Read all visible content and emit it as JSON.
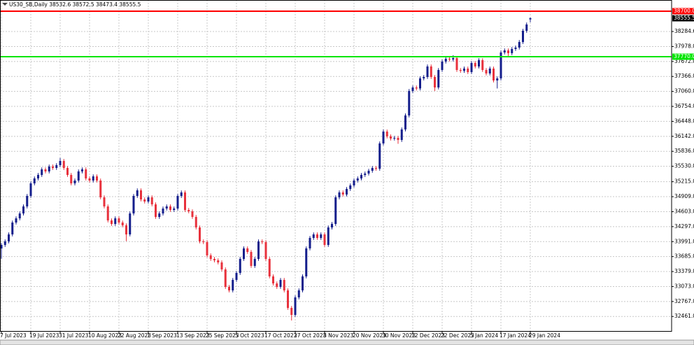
{
  "chart_data": {
    "type": "candlestick",
    "title": "US30_SB,Daily 38532.6 38572.5 38473.4 38555.5",
    "up_color": "#141e8c",
    "down_color": "#e8313c",
    "grid": true,
    "ylim": [
      32178.5,
      38813.7
    ],
    "yticks": [
      38284.6,
      {
        "value": 37978,
        "label": "37978.0"
      },
      {
        "value": 37672,
        "label": "37672.0"
      },
      {
        "value": 37366,
        "label": "37366.0"
      },
      {
        "value": 37060,
        "label": "37060.0"
      },
      {
        "value": 36754,
        "label": "36754.0"
      },
      {
        "value": 36448,
        "label": "36448.0"
      },
      {
        "value": 36142,
        "label": "36142.0"
      },
      {
        "value": 35836,
        "label": "35836.0"
      },
      {
        "value": 35530,
        "label": "35530.0"
      },
      {
        "value": 35215,
        "label": "35215.0"
      },
      {
        "value": 34909,
        "label": "34909.0"
      },
      {
        "value": 34603,
        "label": "34603.0"
      },
      {
        "value": 34297,
        "label": "34297.0"
      },
      {
        "value": 33991,
        "label": "33991.0"
      },
      {
        "value": 33685,
        "label": "33685.0"
      },
      {
        "value": 33379,
        "label": "33379.0"
      },
      {
        "value": 33073,
        "label": "33073.0"
      },
      {
        "value": 32767,
        "label": "32767.0"
      },
      {
        "value": 32461,
        "label": "32461.0"
      }
    ],
    "hlines": [
      {
        "value": 38700,
        "label": "38700.0",
        "color": "#ff0000"
      },
      {
        "value": 37770,
        "label": "37770.0",
        "color": "#00e600"
      }
    ],
    "last_price": 38555.5,
    "categories": [
      "7 Jul 2023",
      null,
      null,
      null,
      null,
      null,
      null,
      null,
      "19 Jul 2023",
      null,
      null,
      null,
      null,
      null,
      null,
      null,
      "31 Jul 2023",
      null,
      null,
      null,
      null,
      null,
      null,
      null,
      "10 Aug 2023",
      null,
      null,
      null,
      null,
      null,
      null,
      null,
      "22 Aug 2023",
      null,
      null,
      null,
      null,
      null,
      null,
      null,
      "1 Sep 2023",
      null,
      null,
      null,
      null,
      null,
      null,
      null,
      "13 Sep 2023",
      null,
      null,
      null,
      null,
      null,
      null,
      null,
      "25 Sep 2023",
      null,
      null,
      null,
      null,
      null,
      null,
      null,
      "5 Oct 2023",
      null,
      null,
      null,
      null,
      null,
      null,
      null,
      "17 Oct 2023",
      null,
      null,
      null,
      null,
      null,
      null,
      null,
      "27 Oct 2023",
      null,
      null,
      null,
      null,
      null,
      null,
      null,
      "8 Nov 2023",
      null,
      null,
      null,
      null,
      null,
      null,
      null,
      "20 Nov 2023",
      null,
      null,
      null,
      null,
      null,
      null,
      null,
      "30 Nov 2023",
      null,
      null,
      null,
      null,
      null,
      null,
      null,
      "12 Dec 2023",
      null,
      null,
      null,
      null,
      null,
      null,
      null,
      "22 Dec 2023",
      null,
      null,
      null,
      null,
      null,
      null,
      null,
      "5 Jan 2024",
      null,
      null,
      null,
      null,
      null,
      null,
      null,
      "17 Jan 2024",
      null,
      null,
      null,
      null,
      null,
      null,
      null,
      "29 Jan 2024"
    ],
    "open": [
      33850,
      33923,
      33995,
      34138,
      34381,
      34466,
      34566,
      34710,
      34924,
      35181,
      35282,
      35353,
      35467,
      35425,
      35525,
      35496,
      35553,
      35639,
      35496,
      35353,
      35181,
      35239,
      35425,
      35467,
      35282,
      35239,
      35324,
      35239,
      34895,
      34710,
      34424,
      34352,
      34466,
      34381,
      34323,
      34138,
      34566,
      34924,
      35038,
      34853,
      34810,
      34895,
      34752,
      34495,
      34566,
      34667,
      34710,
      34638,
      34667,
      34924,
      34996,
      34638,
      34609,
      34495,
      34280,
      33995,
      33980,
      33709,
      33637,
      33608,
      33566,
      33423,
      33065,
      32994,
      33208,
      33351,
      33637,
      33852,
      33780,
      33494,
      33637,
      33995,
      33980,
      33637,
      33280,
      33136,
      33065,
      33208,
      32994,
      32636,
      32493,
      32851,
      32994,
      33280,
      33852,
      34066,
      34138,
      34066,
      34138,
      33923,
      34280,
      34352,
      34895,
      34996,
      34953,
      35067,
      35139,
      35239,
      35282,
      35353,
      35382,
      35439,
      35496,
      35480,
      35997,
      36240,
      36140,
      36097,
      36111,
      36068,
      36283,
      36569,
      37069,
      37141,
      37120,
      37326,
      37355,
      37570,
      37355,
      37141,
      37498,
      37670,
      37727,
      37713,
      37741,
      37498,
      37480,
      37527,
      37455,
      37641,
      37570,
      37698,
      37498,
      37427,
      37527,
      37284,
      37326,
      37856,
      37898,
      37841,
      37927,
      37956,
      38070,
      38299,
      38532.6
    ],
    "high": [
      33963,
      34035,
      34178,
      34421,
      34506,
      34606,
      34750,
      34964,
      35221,
      35322,
      35393,
      35507,
      35507,
      35565,
      35565,
      35593,
      35700,
      35679,
      35536,
      35393,
      35279,
      35465,
      35507,
      35507,
      35322,
      35364,
      35364,
      35279,
      34935,
      34750,
      34464,
      34506,
      34506,
      34421,
      34363,
      34606,
      34964,
      35078,
      35078,
      34893,
      34935,
      34935,
      34792,
      34606,
      34707,
      34750,
      34750,
      34707,
      34964,
      35036,
      35036,
      34678,
      34649,
      34535,
      34320,
      34035,
      34020,
      33749,
      33677,
      33648,
      33606,
      33463,
      33105,
      33248,
      33391,
      33677,
      33892,
      33892,
      33820,
      33677,
      34035,
      34035,
      34020,
      33677,
      33320,
      33176,
      33248,
      33248,
      33034,
      32676,
      32891,
      33034,
      33320,
      33892,
      34106,
      34178,
      34178,
      34178,
      34178,
      34320,
      34392,
      34935,
      35036,
      35036,
      35107,
      35179,
      35279,
      35322,
      35393,
      35422,
      35479,
      35536,
      35536,
      36037,
      36280,
      36280,
      36180,
      36151,
      36151,
      36323,
      36609,
      37109,
      37181,
      37181,
      37366,
      37395,
      37610,
      37610,
      37395,
      37538,
      37710,
      37767,
      37767,
      37800,
      37781,
      37538,
      37567,
      37567,
      37681,
      37681,
      37738,
      37738,
      37538,
      37567,
      37567,
      37366,
      37896,
      37938,
      37938,
      37967,
      37996,
      38110,
      38339,
      38468,
      38572.5
    ],
    "low": [
      33640,
      33883,
      33955,
      34098,
      34341,
      34426,
      34526,
      34670,
      34884,
      35141,
      35242,
      35313,
      35385,
      35385,
      35456,
      35456,
      35513,
      35456,
      35313,
      35141,
      35141,
      35199,
      35385,
      35242,
      35199,
      35199,
      35199,
      34855,
      34670,
      34384,
      34312,
      34312,
      34341,
      34283,
      34000,
      34098,
      34526,
      34884,
      34813,
      34770,
      34770,
      34712,
      34455,
      34455,
      34526,
      34627,
      34598,
      34598,
      34627,
      34884,
      34598,
      34569,
      34455,
      34240,
      33955,
      33940,
      33669,
      33597,
      33568,
      33526,
      33383,
      33025,
      32954,
      32954,
      33168,
      33311,
      33597,
      33740,
      33454,
      33454,
      33597,
      33940,
      33597,
      33240,
      33096,
      33025,
      33025,
      32954,
      32596,
      32379,
      32453,
      32811,
      32954,
      33240,
      33812,
      34026,
      34026,
      34026,
      33883,
      33883,
      34240,
      34312,
      34855,
      34913,
      34913,
      35027,
      35099,
      35199,
      35242,
      35313,
      35342,
      35399,
      35440,
      35440,
      35957,
      36100,
      36057,
      36057,
      35990,
      36028,
      36243,
      36529,
      37029,
      37080,
      37080,
      37286,
      37315,
      37315,
      37069,
      37101,
      37458,
      37630,
      37673,
      37673,
      37458,
      37440,
      37440,
      37415,
      37415,
      37530,
      37530,
      37458,
      37387,
      37387,
      37244,
      37120,
      37286,
      37816,
      37760,
      37801,
      37887,
      37916,
      38030,
      38259,
      38473.4
    ],
    "close": [
      33923,
      33995,
      34138,
      34381,
      34466,
      34566,
      34710,
      34924,
      35181,
      35282,
      35353,
      35467,
      35425,
      35525,
      35496,
      35553,
      35639,
      35496,
      35353,
      35181,
      35239,
      35425,
      35467,
      35282,
      35239,
      35324,
      35239,
      34895,
      34710,
      34424,
      34352,
      34466,
      34381,
      34323,
      34138,
      34566,
      34924,
      35038,
      34853,
      34810,
      34895,
      34752,
      34495,
      34566,
      34667,
      34710,
      34638,
      34667,
      34924,
      34996,
      34638,
      34609,
      34495,
      34280,
      33995,
      33980,
      33709,
      33637,
      33608,
      33566,
      33423,
      33065,
      32994,
      33208,
      33351,
      33637,
      33852,
      33780,
      33494,
      33637,
      33995,
      33980,
      33637,
      33280,
      33136,
      33065,
      33208,
      32994,
      32636,
      32493,
      32851,
      32994,
      33280,
      33852,
      34066,
      34138,
      34066,
      34138,
      33923,
      34280,
      34352,
      34895,
      34996,
      34953,
      35067,
      35139,
      35239,
      35282,
      35353,
      35382,
      35439,
      35496,
      35480,
      35997,
      36240,
      36140,
      36097,
      36111,
      36068,
      36283,
      36569,
      37069,
      37141,
      37120,
      37326,
      37355,
      37570,
      37355,
      37141,
      37498,
      37670,
      37727,
      37713,
      37741,
      37498,
      37480,
      37527,
      37455,
      37641,
      37570,
      37698,
      37498,
      37427,
      37527,
      37284,
      37326,
      37856,
      37898,
      37841,
      37927,
      37956,
      38070,
      38299,
      38428,
      38555.5
    ]
  }
}
